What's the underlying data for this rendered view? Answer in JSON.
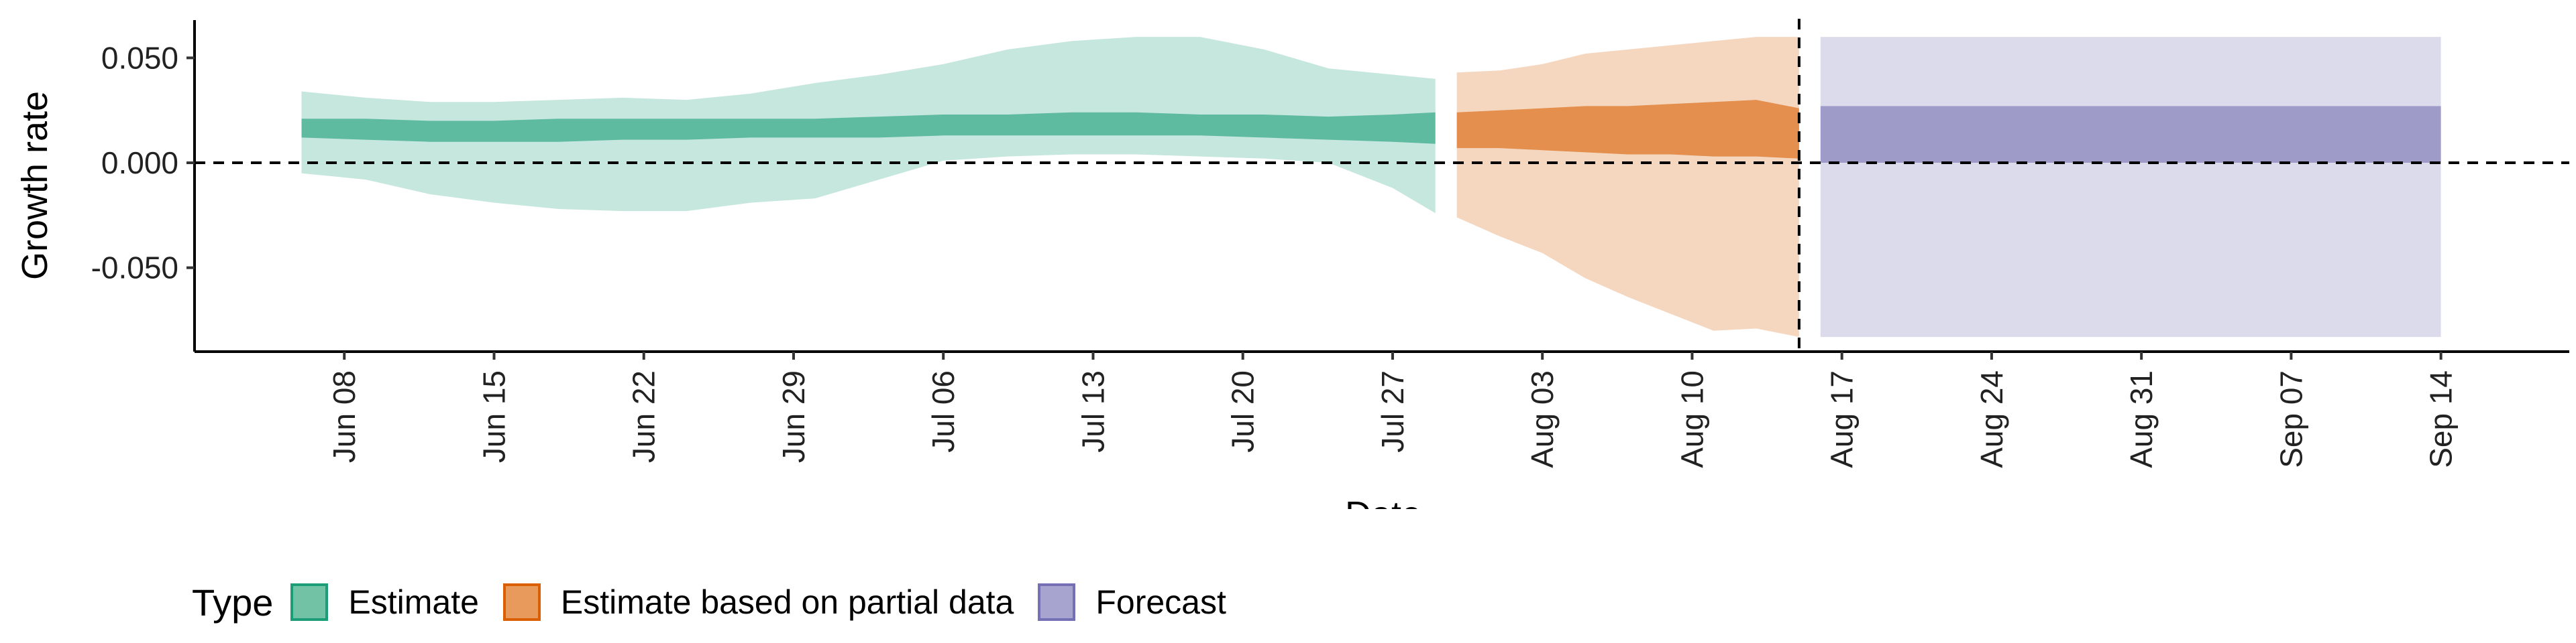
{
  "chart_data": {
    "type": "area",
    "xlabel": "Date",
    "ylabel": "Growth rate",
    "x_range": [
      "2020-06-01",
      "2020-09-20"
    ],
    "ylim": [
      -0.09,
      0.068
    ],
    "y_ticks": [
      0.05,
      0.0,
      -0.05
    ],
    "y_tick_labels": [
      "0.050",
      "0.000",
      "-0.050"
    ],
    "x_ticks": [
      "2020-06-08",
      "2020-06-15",
      "2020-06-22",
      "2020-06-29",
      "2020-07-06",
      "2020-07-13",
      "2020-07-20",
      "2020-07-27",
      "2020-08-03",
      "2020-08-10",
      "2020-08-17",
      "2020-08-24",
      "2020-08-31",
      "2020-09-07",
      "2020-09-14"
    ],
    "x_tick_labels": [
      "Jun 08",
      "Jun 15",
      "Jun 22",
      "Jun 29",
      "Jul 06",
      "Jul 13",
      "Jul 20",
      "Jul 27",
      "Aug 03",
      "Aug 10",
      "Aug 17",
      "Aug 24",
      "Aug 31",
      "Sep 07",
      "Sep 14"
    ],
    "hline_y": 0.0,
    "vline_x": "2020-08-15",
    "grid": false,
    "legend": {
      "title": "Type",
      "position": "bottom",
      "items": [
        {
          "label": "Estimate",
          "fill": "#72c3a6",
          "border": "#1b9e77"
        },
        {
          "label": "Estimate based on partial data",
          "fill": "#e89a5c",
          "border": "#d95f02"
        },
        {
          "label": "Forecast",
          "fill": "#a8a4d0",
          "border": "#7570b3"
        }
      ]
    },
    "series": [
      {
        "name": "Estimate",
        "color": "#1b9e77",
        "x": [
          "2020-06-06",
          "2020-06-09",
          "2020-06-12",
          "2020-06-15",
          "2020-06-18",
          "2020-06-21",
          "2020-06-24",
          "2020-06-27",
          "2020-06-30",
          "2020-07-03",
          "2020-07-06",
          "2020-07-09",
          "2020-07-12",
          "2020-07-15",
          "2020-07-18",
          "2020-07-21",
          "2020-07-24",
          "2020-07-27",
          "2020-07-29"
        ],
        "lower_90": [
          -0.005,
          -0.008,
          -0.015,
          -0.019,
          -0.022,
          -0.023,
          -0.023,
          -0.019,
          -0.017,
          -0.008,
          0.001,
          0.003,
          0.004,
          0.004,
          0.003,
          0.002,
          0.0,
          -0.012,
          -0.024
        ],
        "upper_90": [
          0.034,
          0.031,
          0.029,
          0.029,
          0.03,
          0.031,
          0.03,
          0.033,
          0.038,
          0.042,
          0.047,
          0.054,
          0.058,
          0.06,
          0.06,
          0.054,
          0.045,
          0.042,
          0.04
        ],
        "lower_50": [
          0.012,
          0.011,
          0.01,
          0.01,
          0.01,
          0.011,
          0.011,
          0.012,
          0.012,
          0.012,
          0.013,
          0.013,
          0.013,
          0.013,
          0.013,
          0.012,
          0.011,
          0.01,
          0.009
        ],
        "upper_50": [
          0.021,
          0.021,
          0.02,
          0.02,
          0.021,
          0.021,
          0.021,
          0.021,
          0.021,
          0.022,
          0.023,
          0.023,
          0.024,
          0.024,
          0.023,
          0.023,
          0.022,
          0.023,
          0.024
        ]
      },
      {
        "name": "Estimate based on partial data",
        "color": "#d95f02",
        "x": [
          "2020-07-30",
          "2020-08-01",
          "2020-08-03",
          "2020-08-05",
          "2020-08-07",
          "2020-08-09",
          "2020-08-11",
          "2020-08-13",
          "2020-08-15"
        ],
        "lower_90": [
          -0.026,
          -0.035,
          -0.043,
          -0.055,
          -0.064,
          -0.072,
          -0.08,
          -0.079,
          -0.083
        ],
        "upper_90": [
          0.043,
          0.044,
          0.047,
          0.052,
          0.054,
          0.056,
          0.058,
          0.06,
          0.06
        ],
        "lower_50": [
          0.007,
          0.007,
          0.006,
          0.005,
          0.004,
          0.004,
          0.003,
          0.003,
          0.002
        ],
        "upper_50": [
          0.024,
          0.025,
          0.026,
          0.027,
          0.027,
          0.028,
          0.029,
          0.03,
          0.026
        ]
      },
      {
        "name": "Forecast",
        "color": "#7570b3",
        "x": [
          "2020-08-16",
          "2020-09-14"
        ],
        "lower_90": [
          -0.083,
          -0.083
        ],
        "upper_90": [
          0.06,
          0.06
        ],
        "lower_50": [
          0.0,
          0.0
        ],
        "upper_50": [
          0.027,
          0.027
        ]
      }
    ]
  }
}
